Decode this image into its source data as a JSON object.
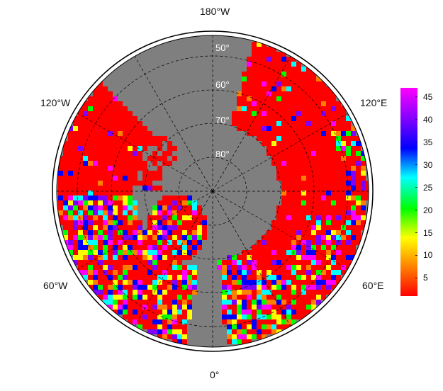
{
  "map": {
    "projection": "north polar stereographic",
    "ocean_color": "#7f7f7f",
    "land_no_data_color": "#ffffff",
    "longitude_labels": {
      "top": "180°W",
      "bottom": "0°",
      "upper_left": "120°W",
      "upper_right": "120°E",
      "lower_left": "60°W",
      "lower_right": "60°E"
    },
    "latitude_labels": [
      "50°",
      "60°",
      "70°",
      "80°"
    ]
  },
  "colorbar": {
    "ticks": [
      "45",
      "40",
      "35",
      "30",
      "25",
      "20",
      "15",
      "10",
      "5"
    ],
    "tick_values": [
      45,
      40,
      35,
      30,
      25,
      20,
      15,
      10,
      5
    ],
    "min": 1,
    "max": 47,
    "colors": [
      "#ff0000",
      "#ff8000",
      "#ffff00",
      "#00ff00",
      "#00ffff",
      "#0000ff",
      "#8000ff",
      "#ff00ff"
    ]
  }
}
